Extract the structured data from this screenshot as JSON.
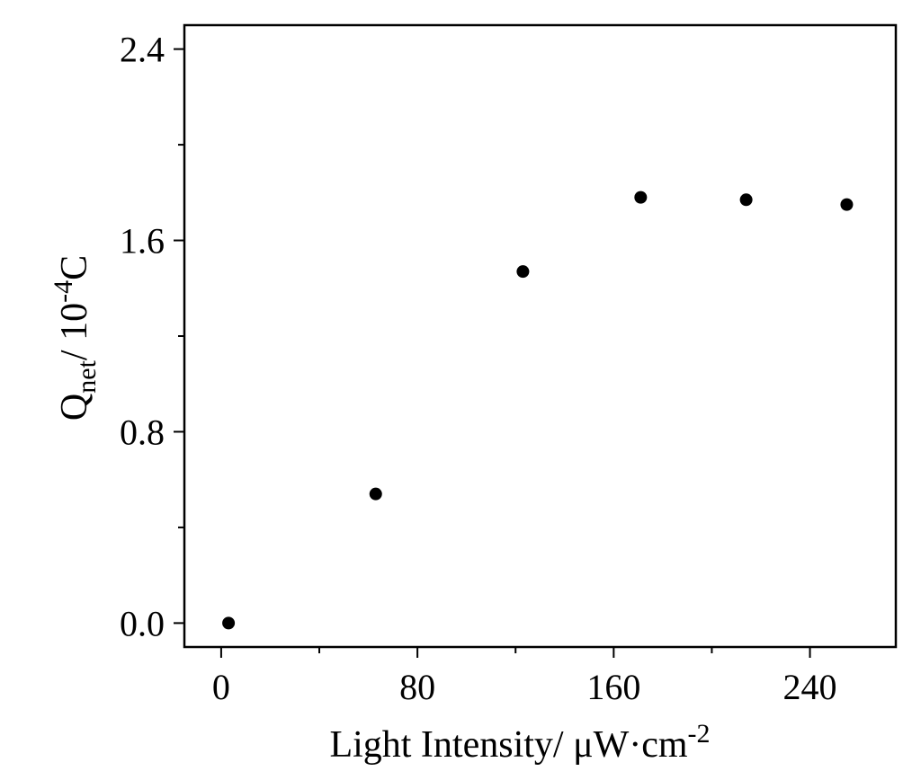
{
  "chart_data": {
    "type": "scatter",
    "title": "",
    "xlabel": {
      "main": "Light Intensity/ μW·cm",
      "superscript": "-2"
    },
    "ylabel": {
      "main": "Q",
      "subscript": "net",
      "unit": "/ 10",
      "superscript": "-4",
      "tail": "C"
    },
    "xlim": [
      -15,
      275
    ],
    "ylim": [
      -0.1,
      2.5
    ],
    "x_ticks": [
      0,
      80,
      160,
      240
    ],
    "y_ticks": [
      0.0,
      0.8,
      1.6,
      2.4
    ],
    "x_tick_labels": [
      "0",
      "80",
      "160",
      "240"
    ],
    "y_tick_labels": [
      "0.0",
      "0.8",
      "1.6",
      "2.4"
    ],
    "x_minor_ticks": [
      40,
      120,
      200
    ],
    "y_minor_ticks": [
      0.4,
      1.2,
      2.0
    ],
    "grid": false,
    "legend": "none",
    "marker_color": "#000000",
    "series": [
      {
        "x": [
          3,
          63,
          123,
          171,
          214,
          255
        ],
        "y": [
          0.0,
          0.54,
          1.47,
          1.78,
          1.77,
          1.75
        ]
      }
    ]
  }
}
